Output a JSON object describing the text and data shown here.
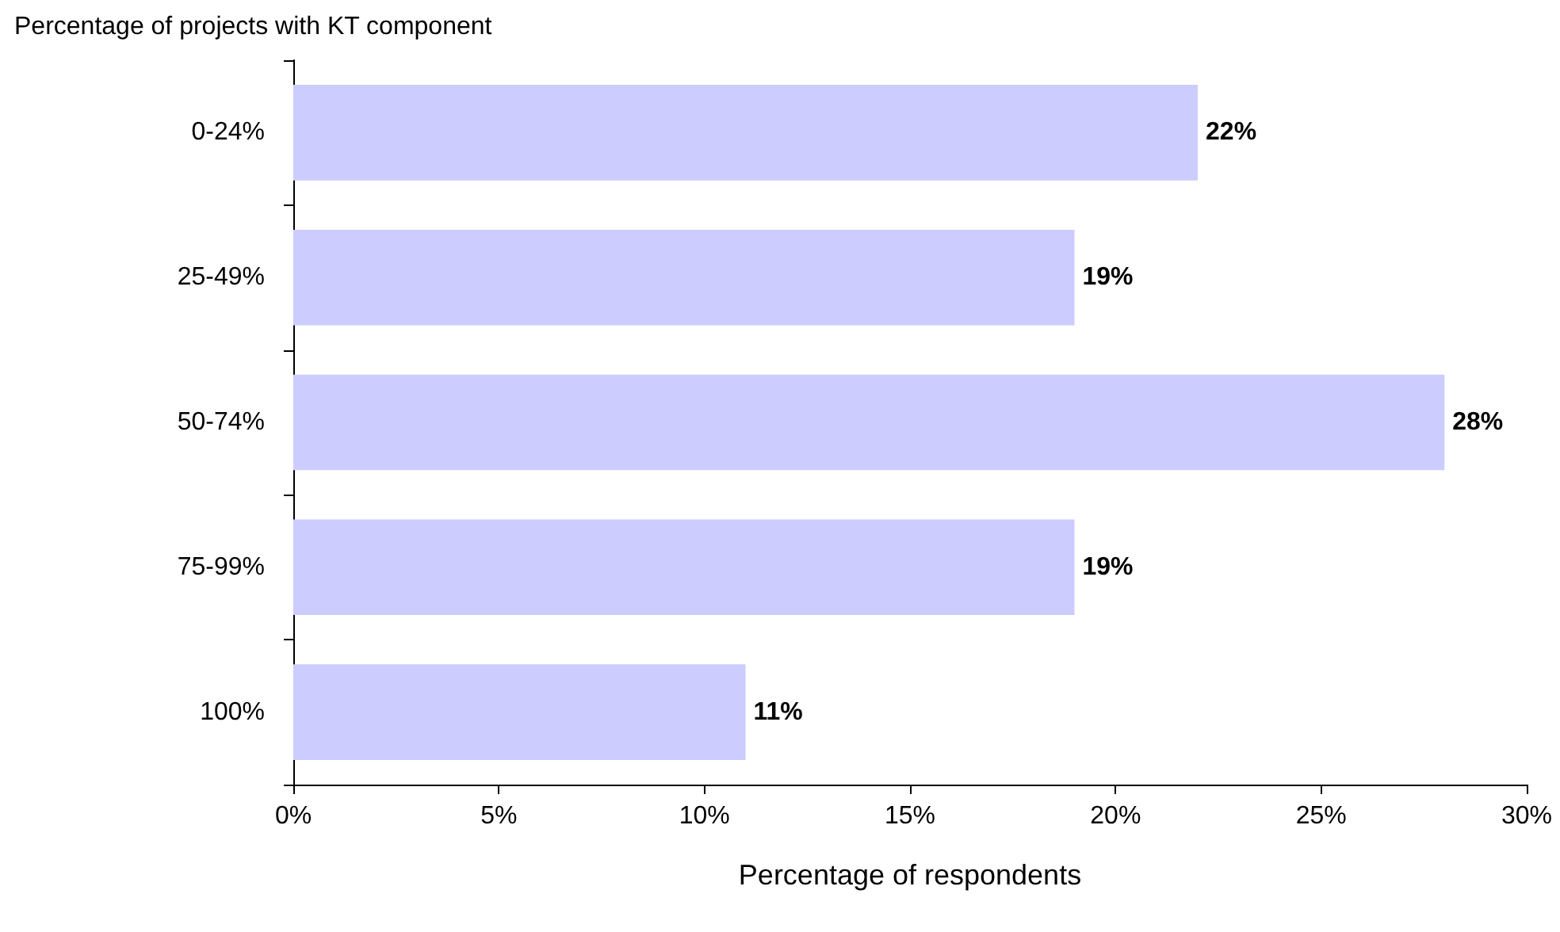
{
  "chart_data": {
    "type": "bar",
    "orientation": "horizontal",
    "ylabel": "Percentage of projects with KT component",
    "xlabel": "Percentage of respondents",
    "categories": [
      "0-24%",
      "25-49%",
      "50-74%",
      "75-99%",
      "100%"
    ],
    "values": [
      22,
      19,
      28,
      19,
      11
    ],
    "color": "#ccccff",
    "value_labels": [
      "22%",
      "19%",
      "28%",
      "19%",
      "11%"
    ],
    "xlim": [
      0,
      30
    ],
    "xticks": [
      {
        "value": 0,
        "label": "0%"
      },
      {
        "value": 5,
        "label": "5%"
      },
      {
        "value": 10,
        "label": "10%"
      },
      {
        "value": 15,
        "label": "15%"
      },
      {
        "value": 20,
        "label": "20%"
      },
      {
        "value": 25,
        "label": "25%"
      },
      {
        "value": 30,
        "label": "30%"
      }
    ],
    "grid": false
  }
}
